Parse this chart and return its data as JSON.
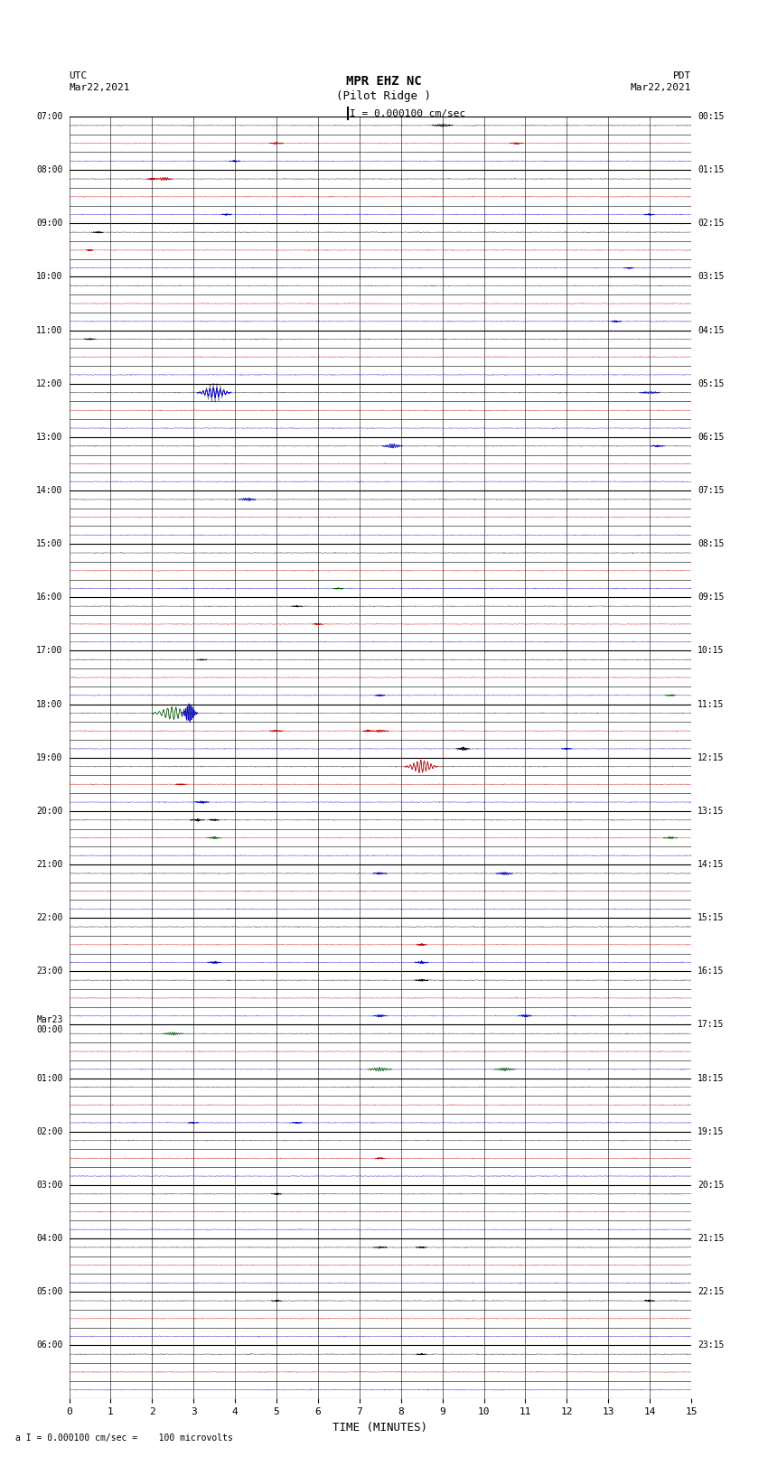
{
  "title_line1": "MPR EHZ NC",
  "title_line2": "(Pilot Ridge )",
  "scale_text": "I = 0.000100 cm/sec",
  "left_label": "UTC\nMar22,2021",
  "right_label": "PDT\nMar22,2021",
  "bottom_label": "a I = 0.000100 cm/sec =    100 microvolts",
  "xlabel": "TIME (MINUTES)",
  "left_times": [
    "07:00",
    "08:00",
    "09:00",
    "10:00",
    "11:00",
    "12:00",
    "13:00",
    "14:00",
    "15:00",
    "16:00",
    "17:00",
    "18:00",
    "19:00",
    "20:00",
    "21:00",
    "22:00",
    "23:00",
    "Mar23\n00:00",
    "01:00",
    "02:00",
    "03:00",
    "04:00",
    "05:00",
    "06:00"
  ],
  "right_times": [
    "00:15",
    "01:15",
    "02:15",
    "03:15",
    "04:15",
    "05:15",
    "06:15",
    "07:15",
    "08:15",
    "09:15",
    "10:15",
    "11:15",
    "12:15",
    "13:15",
    "14:15",
    "15:15",
    "16:15",
    "17:15",
    "18:15",
    "19:15",
    "20:15",
    "21:15",
    "22:15",
    "23:15"
  ],
  "num_rows": 24,
  "minutes_per_row": 15,
  "traces_per_row": 3,
  "bg_color": "#ffffff",
  "row_colors": [
    "#000000",
    "#cc0000",
    "#0000cc",
    "#006600"
  ],
  "noise_amplitude": 0.012,
  "figsize": [
    8.5,
    16.13
  ],
  "dpi": 100,
  "events": [
    {
      "row": 0,
      "sub": 0,
      "minute": 9.0,
      "amp": 0.07,
      "dur": 0.3,
      "color": "#000000"
    },
    {
      "row": 0,
      "sub": 1,
      "minute": 5.0,
      "amp": 0.04,
      "dur": 0.2,
      "color": "#cc0000"
    },
    {
      "row": 0,
      "sub": 2,
      "minute": 4.0,
      "amp": 0.04,
      "dur": 0.15,
      "color": "#0000cc"
    },
    {
      "row": 0,
      "sub": 1,
      "minute": 10.8,
      "amp": 0.05,
      "dur": 0.2,
      "color": "#cc0000"
    },
    {
      "row": 1,
      "sub": 0,
      "minute": 2.3,
      "amp": 0.08,
      "dur": 0.25,
      "color": "#cc0000"
    },
    {
      "row": 1,
      "sub": 0,
      "minute": 2.0,
      "amp": 0.06,
      "dur": 0.15,
      "color": "#cc0000"
    },
    {
      "row": 1,
      "sub": 2,
      "minute": 3.8,
      "amp": 0.04,
      "dur": 0.15,
      "color": "#0000cc"
    },
    {
      "row": 1,
      "sub": 2,
      "minute": 14.0,
      "amp": 0.04,
      "dur": 0.15,
      "color": "#0000cc"
    },
    {
      "row": 2,
      "sub": 0,
      "minute": 0.7,
      "amp": 0.04,
      "dur": 0.15,
      "color": "#000000"
    },
    {
      "row": 2,
      "sub": 1,
      "minute": 0.5,
      "amp": 0.04,
      "dur": 0.1,
      "color": "#cc0000"
    },
    {
      "row": 2,
      "sub": 2,
      "minute": 13.5,
      "amp": 0.04,
      "dur": 0.15,
      "color": "#0000cc"
    },
    {
      "row": 3,
      "sub": 2,
      "minute": 13.2,
      "amp": 0.04,
      "dur": 0.15,
      "color": "#0000cc"
    },
    {
      "row": 4,
      "sub": 0,
      "minute": 0.5,
      "amp": 0.04,
      "dur": 0.15,
      "color": "#000000"
    },
    {
      "row": 5,
      "sub": 0,
      "minute": 3.5,
      "amp": 0.28,
      "dur": 0.5,
      "color": "#0000cc"
    },
    {
      "row": 5,
      "sub": 0,
      "minute": 3.5,
      "amp": 0.28,
      "dur": 0.5,
      "color": "#0000cc"
    },
    {
      "row": 5,
      "sub": 0,
      "minute": 14.0,
      "amp": 0.06,
      "dur": 0.3,
      "color": "#0000cc"
    },
    {
      "row": 6,
      "sub": 0,
      "minute": 7.8,
      "amp": 0.12,
      "dur": 0.3,
      "color": "#0000cc"
    },
    {
      "row": 6,
      "sub": 0,
      "minute": 14.2,
      "amp": 0.04,
      "dur": 0.2,
      "color": "#0000cc"
    },
    {
      "row": 7,
      "sub": 0,
      "minute": 4.3,
      "amp": 0.08,
      "dur": 0.25,
      "color": "#0000cc"
    },
    {
      "row": 8,
      "sub": 2,
      "minute": 6.5,
      "amp": 0.04,
      "dur": 0.15,
      "color": "#006600"
    },
    {
      "row": 9,
      "sub": 0,
      "minute": 5.5,
      "amp": 0.04,
      "dur": 0.15,
      "color": "#000000"
    },
    {
      "row": 9,
      "sub": 1,
      "minute": 6.0,
      "amp": 0.04,
      "dur": 0.15,
      "color": "#cc0000"
    },
    {
      "row": 10,
      "sub": 0,
      "minute": 3.2,
      "amp": 0.04,
      "dur": 0.15,
      "color": "#000000"
    },
    {
      "row": 10,
      "sub": 2,
      "minute": 7.5,
      "amp": 0.04,
      "dur": 0.15,
      "color": "#0000cc"
    },
    {
      "row": 10,
      "sub": 2,
      "minute": 14.5,
      "amp": 0.04,
      "dur": 0.15,
      "color": "#006600"
    },
    {
      "row": 11,
      "sub": 0,
      "minute": 2.5,
      "amp": 0.35,
      "dur": 0.6,
      "color": "#006600"
    },
    {
      "row": 11,
      "sub": 0,
      "minute": 2.9,
      "amp": 0.5,
      "dur": 0.25,
      "color": "#0000cc"
    },
    {
      "row": 11,
      "sub": 1,
      "minute": 7.5,
      "amp": 0.06,
      "dur": 0.25,
      "color": "#cc0000"
    },
    {
      "row": 11,
      "sub": 1,
      "minute": 7.2,
      "amp": 0.05,
      "dur": 0.15,
      "color": "#cc0000"
    },
    {
      "row": 11,
      "sub": 1,
      "minute": 5.0,
      "amp": 0.05,
      "dur": 0.2,
      "color": "#cc0000"
    },
    {
      "row": 11,
      "sub": 2,
      "minute": 9.5,
      "amp": 0.08,
      "dur": 0.2,
      "color": "#000000"
    },
    {
      "row": 11,
      "sub": 2,
      "minute": 12.0,
      "amp": 0.04,
      "dur": 0.15,
      "color": "#0000cc"
    },
    {
      "row": 12,
      "sub": 0,
      "minute": 8.5,
      "amp": 0.35,
      "dur": 0.5,
      "color": "#cc0000"
    },
    {
      "row": 12,
      "sub": 2,
      "minute": 3.2,
      "amp": 0.06,
      "dur": 0.2,
      "color": "#0000cc"
    },
    {
      "row": 12,
      "sub": 1,
      "minute": 2.7,
      "amp": 0.04,
      "dur": 0.15,
      "color": "#cc0000"
    },
    {
      "row": 13,
      "sub": 0,
      "minute": 3.1,
      "amp": 0.06,
      "dur": 0.2,
      "color": "#000000"
    },
    {
      "row": 13,
      "sub": 0,
      "minute": 3.5,
      "amp": 0.05,
      "dur": 0.15,
      "color": "#000000"
    },
    {
      "row": 13,
      "sub": 1,
      "minute": 3.5,
      "amp": 0.05,
      "dur": 0.2,
      "color": "#006600"
    },
    {
      "row": 13,
      "sub": 1,
      "minute": 14.5,
      "amp": 0.05,
      "dur": 0.2,
      "color": "#006600"
    },
    {
      "row": 14,
      "sub": 0,
      "minute": 7.5,
      "amp": 0.06,
      "dur": 0.2,
      "color": "#0000cc"
    },
    {
      "row": 14,
      "sub": 0,
      "minute": 10.5,
      "amp": 0.08,
      "dur": 0.25,
      "color": "#0000cc"
    },
    {
      "row": 15,
      "sub": 2,
      "minute": 3.5,
      "amp": 0.06,
      "dur": 0.2,
      "color": "#0000cc"
    },
    {
      "row": 15,
      "sub": 2,
      "minute": 8.5,
      "amp": 0.06,
      "dur": 0.2,
      "color": "#0000cc"
    },
    {
      "row": 15,
      "sub": 1,
      "minute": 8.5,
      "amp": 0.05,
      "dur": 0.15,
      "color": "#cc0000"
    },
    {
      "row": 16,
      "sub": 0,
      "minute": 8.5,
      "amp": 0.05,
      "dur": 0.2,
      "color": "#000000"
    },
    {
      "row": 16,
      "sub": 2,
      "minute": 7.5,
      "amp": 0.06,
      "dur": 0.2,
      "color": "#0000cc"
    },
    {
      "row": 16,
      "sub": 2,
      "minute": 11.0,
      "amp": 0.06,
      "dur": 0.2,
      "color": "#0000cc"
    },
    {
      "row": 17,
      "sub": 0,
      "minute": 2.5,
      "amp": 0.08,
      "dur": 0.3,
      "color": "#006600"
    },
    {
      "row": 17,
      "sub": 2,
      "minute": 7.5,
      "amp": 0.1,
      "dur": 0.35,
      "color": "#006600"
    },
    {
      "row": 17,
      "sub": 2,
      "minute": 10.5,
      "amp": 0.08,
      "dur": 0.3,
      "color": "#006600"
    },
    {
      "row": 18,
      "sub": 2,
      "minute": 3.0,
      "amp": 0.04,
      "dur": 0.15,
      "color": "#0000cc"
    },
    {
      "row": 18,
      "sub": 2,
      "minute": 5.5,
      "amp": 0.04,
      "dur": 0.15,
      "color": "#0000cc"
    },
    {
      "row": 19,
      "sub": 1,
      "minute": 7.5,
      "amp": 0.04,
      "dur": 0.15,
      "color": "#cc0000"
    },
    {
      "row": 20,
      "sub": 0,
      "minute": 5.0,
      "amp": 0.04,
      "dur": 0.15,
      "color": "#000000"
    },
    {
      "row": 21,
      "sub": 0,
      "minute": 7.5,
      "amp": 0.04,
      "dur": 0.2,
      "color": "#000000"
    },
    {
      "row": 21,
      "sub": 0,
      "minute": 8.5,
      "amp": 0.04,
      "dur": 0.15,
      "color": "#000000"
    },
    {
      "row": 22,
      "sub": 0,
      "minute": 5.0,
      "amp": 0.04,
      "dur": 0.15,
      "color": "#000000"
    },
    {
      "row": 22,
      "sub": 0,
      "minute": 14.0,
      "amp": 0.04,
      "dur": 0.15,
      "color": "#000000"
    },
    {
      "row": 23,
      "sub": 0,
      "minute": 8.5,
      "amp": 0.04,
      "dur": 0.15,
      "color": "#000000"
    }
  ]
}
